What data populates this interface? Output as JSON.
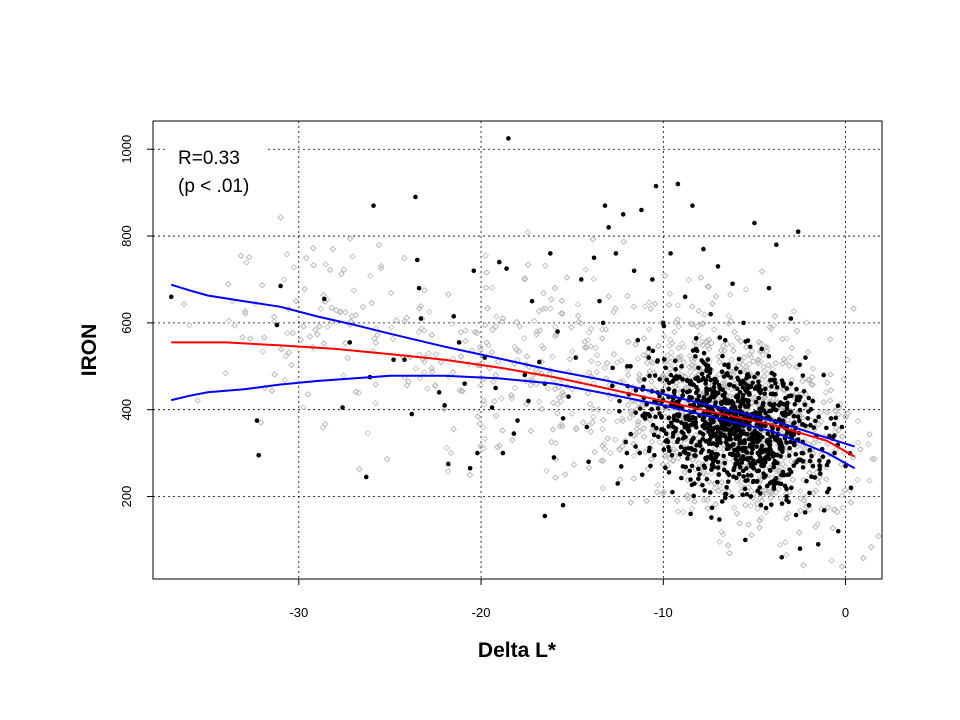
{
  "chart_data": {
    "type": "scatter",
    "xlabel": "Delta L*",
    "ylabel": "IRON",
    "xlim": [
      -38,
      2
    ],
    "ylim": [
      10,
      1065
    ],
    "x_ticks": [
      -30,
      -20,
      -10,
      0
    ],
    "y_ticks": [
      200,
      400,
      600,
      800,
      1000
    ],
    "grid": "dotted",
    "annotations": [
      "R=0.33",
      "(p < .01)"
    ],
    "background_points": {
      "style": "open diamond, light gray",
      "x_range": [
        -37,
        2
      ],
      "y_range": [
        30,
        1060
      ],
      "count_approx": 3000
    },
    "highlighted_points": {
      "style": "filled circle, black",
      "points": [
        [
          -37,
          660
        ],
        [
          -32.3,
          375
        ],
        [
          -32.2,
          295
        ],
        [
          -31,
          685
        ],
        [
          -31.2,
          595
        ],
        [
          -28.6,
          655
        ],
        [
          -27.6,
          405
        ],
        [
          -27.2,
          555
        ],
        [
          -26.3,
          245
        ],
        [
          -26.1,
          475
        ],
        [
          -25.9,
          870
        ],
        [
          -24.8,
          515
        ],
        [
          -24.2,
          515
        ],
        [
          -23.8,
          390
        ],
        [
          -23.6,
          890
        ],
        [
          -23.5,
          745
        ],
        [
          -23.4,
          680
        ],
        [
          -23.3,
          610
        ],
        [
          -22.3,
          440
        ],
        [
          -22,
          410
        ],
        [
          -21.8,
          275
        ],
        [
          -21.5,
          615
        ],
        [
          -21.2,
          555
        ],
        [
          -20.9,
          460
        ],
        [
          -20.2,
          300
        ],
        [
          -20.4,
          720
        ],
        [
          -20.6,
          265
        ],
        [
          -19.8,
          520
        ],
        [
          -19.4,
          405
        ],
        [
          -19.2,
          450
        ],
        [
          -19,
          740
        ],
        [
          -18.8,
          300
        ],
        [
          -18.6,
          725
        ],
        [
          -18.5,
          1025
        ],
        [
          -18.2,
          345
        ],
        [
          -18,
          375
        ],
        [
          -17.6,
          480
        ],
        [
          -17.4,
          420
        ],
        [
          -17.2,
          650
        ],
        [
          -16.8,
          510
        ],
        [
          -16.5,
          460
        ],
        [
          -16.2,
          760
        ],
        [
          -16,
          290
        ],
        [
          -15.8,
          580
        ],
        [
          -15.5,
          380
        ],
        [
          -15.2,
          430
        ],
        [
          -14.8,
          520
        ],
        [
          -14.5,
          700
        ],
        [
          -14.2,
          360
        ],
        [
          -14.1,
          280
        ],
        [
          -13.8,
          750
        ],
        [
          -13.5,
          650
        ],
        [
          -13.3,
          600
        ],
        [
          -13.2,
          870
        ],
        [
          -13,
          820
        ],
        [
          -12.8,
          455
        ],
        [
          -12.6,
          760
        ],
        [
          -12.4,
          420
        ],
        [
          -12.2,
          850
        ],
        [
          -12,
          300
        ],
        [
          -11.8,
          500
        ],
        [
          -11.6,
          720
        ],
        [
          -11.4,
          560
        ],
        [
          -11.2,
          860
        ],
        [
          -11,
          380
        ],
        [
          -10.8,
          520
        ],
        [
          -10.6,
          700
        ],
        [
          -10.4,
          915
        ],
        [
          -10.2,
          470
        ],
        [
          -10,
          600
        ],
        [
          -9.8,
          330
        ],
        [
          -9.6,
          760
        ],
        [
          -9.4,
          440
        ],
        [
          -9.2,
          920
        ],
        [
          -9,
          500
        ],
        [
          -8.8,
          660
        ],
        [
          -8.6,
          350
        ],
        [
          -8.4,
          870
        ],
        [
          -8.2,
          540
        ],
        [
          -8,
          410
        ],
        [
          -7.8,
          770
        ],
        [
          -7.6,
          290
        ],
        [
          -7.4,
          620
        ],
        [
          -7.2,
          470
        ],
        [
          -7,
          730
        ],
        [
          -6.8,
          380
        ],
        [
          -6.6,
          560
        ],
        [
          -6.4,
          250
        ],
        [
          -6.2,
          690
        ],
        [
          -6,
          430
        ],
        [
          -5.8,
          330
        ],
        [
          -5.6,
          600
        ],
        [
          -5.4,
          480
        ],
        [
          -5.2,
          200
        ],
        [
          -5,
          830
        ],
        [
          -4.8,
          370
        ],
        [
          -4.6,
          540
        ],
        [
          -4.4,
          290
        ],
        [
          -4.2,
          680
        ],
        [
          -4,
          410
        ],
        [
          -3.8,
          780
        ],
        [
          -3.6,
          330
        ],
        [
          -3.4,
          460
        ],
        [
          -3.2,
          250
        ],
        [
          -3,
          610
        ],
        [
          -2.8,
          370
        ],
        [
          -2.6,
          810
        ],
        [
          -2.4,
          300
        ],
        [
          -2.2,
          520
        ],
        [
          -2,
          180
        ],
        [
          -1.8,
          420
        ],
        [
          -1.6,
          340
        ],
        [
          -1.4,
          270
        ],
        [
          -1.2,
          480
        ],
        [
          -1,
          210
        ],
        [
          -0.8,
          380
        ],
        [
          -0.6,
          300
        ],
        [
          -0.4,
          120
        ],
        [
          -0.2,
          360
        ],
        [
          0,
          270
        ],
        [
          0.3,
          220
        ],
        [
          -2.5,
          80
        ],
        [
          -3.5,
          60
        ],
        [
          -1.5,
          90
        ],
        [
          -5.5,
          100
        ],
        [
          -8.5,
          160
        ],
        [
          -9.5,
          210
        ],
        [
          -12.5,
          230
        ],
        [
          -15.5,
          180
        ],
        [
          -16.5,
          155
        ]
      ]
    },
    "series": [
      {
        "color": "#ff0000",
        "x": [
          -37,
          -34,
          -31,
          -28,
          -25,
          -22,
          -19,
          -16,
          -13,
          -10,
          -7,
          -4,
          -1,
          0.5
        ],
        "y": [
          555,
          555,
          548,
          540,
          528,
          515,
          497,
          475,
          448,
          420,
          392,
          365,
          328,
          292
        ]
      },
      {
        "color": "#0000ff",
        "x": [
          -37,
          -36,
          -35,
          -33,
          -31,
          -29,
          -27,
          -25,
          -22,
          -19,
          -16,
          -13,
          -10,
          -7,
          -4,
          -1,
          0.5
        ],
        "y": [
          688,
          675,
          663,
          650,
          637,
          615,
          596,
          575,
          545,
          518,
          490,
          466,
          436,
          405,
          375,
          335,
          315
        ]
      },
      {
        "color": "#0000ff",
        "x": [
          -37,
          -36,
          -35,
          -33,
          -31,
          -29,
          -27,
          -25,
          -22,
          -19,
          -16,
          -13,
          -10,
          -7,
          -4,
          -1,
          0.5
        ],
        "y": [
          422,
          432,
          440,
          447,
          458,
          466,
          472,
          478,
          478,
          472,
          460,
          436,
          410,
          380,
          350,
          300,
          265
        ]
      }
    ]
  }
}
